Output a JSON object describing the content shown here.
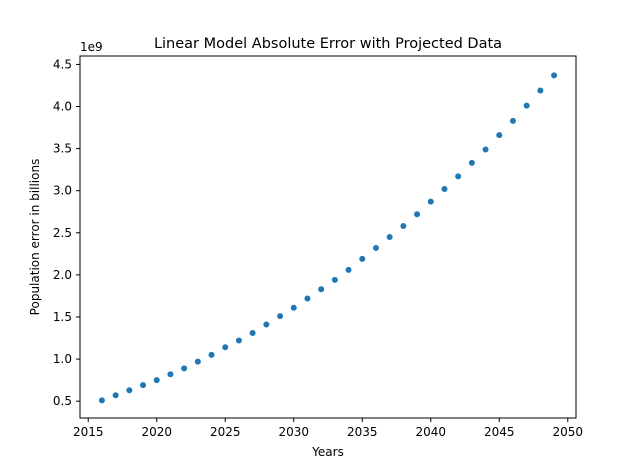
{
  "chart_data": {
    "type": "scatter",
    "title": "Linear Model Absolute Error with Projected Data",
    "xlabel": "Years",
    "ylabel": "Population error in billions",
    "y_offset_text": "1e9",
    "xlim": [
      2014.4,
      2050.6
    ],
    "ylim": [
      300000000.0,
      4600000000.0
    ],
    "xticks": [
      2015,
      2020,
      2025,
      2030,
      2035,
      2040,
      2045,
      2050
    ],
    "xtick_labels": [
      "2015",
      "2020",
      "2025",
      "2030",
      "2035",
      "2040",
      "2045",
      "2050"
    ],
    "yticks": [
      500000000.0,
      1000000000.0,
      1500000000.0,
      2000000000.0,
      2500000000.0,
      3000000000.0,
      3500000000.0,
      4000000000.0,
      4500000000.0
    ],
    "ytick_labels": [
      "0.5",
      "1.0",
      "1.5",
      "2.0",
      "2.5",
      "3.0",
      "3.5",
      "4.0",
      "4.5"
    ],
    "grid": false,
    "marker_color": "#1f77b4",
    "x": [
      2016,
      2017,
      2018,
      2019,
      2020,
      2021,
      2022,
      2023,
      2024,
      2025,
      2026,
      2027,
      2028,
      2029,
      2030,
      2031,
      2032,
      2033,
      2034,
      2035,
      2036,
      2037,
      2038,
      2039,
      2040,
      2041,
      2042,
      2043,
      2044,
      2045,
      2046,
      2047,
      2048,
      2049
    ],
    "y": [
      510000000.0,
      570000000.0,
      630000000.0,
      690000000.0,
      750000000.0,
      820000000.0,
      890000000.0,
      970000000.0,
      1050000000.0,
      1140000000.0,
      1220000000.0,
      1310000000.0,
      1410000000.0,
      1510000000.0,
      1610000000.0,
      1720000000.0,
      1830000000.0,
      1940000000.0,
      2060000000.0,
      2190000000.0,
      2320000000.0,
      2450000000.0,
      2580000000.0,
      2720000000.0,
      2870000000.0,
      3020000000.0,
      3170000000.0,
      3330000000.0,
      3490000000.0,
      3660000000.0,
      3830000000.0,
      4010000000.0,
      4190000000.0,
      4370000000.0
    ]
  }
}
